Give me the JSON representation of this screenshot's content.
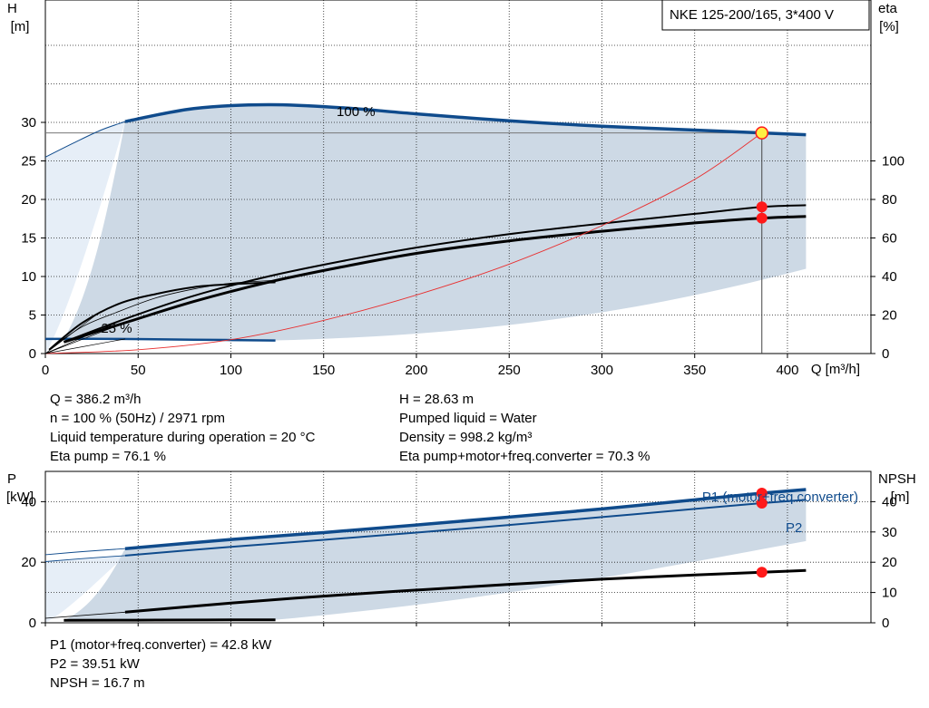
{
  "chart_data": [
    {
      "type": "line",
      "title": "NKE 125-200/165, 3*400 V",
      "xlabel": "Q [m³/h]",
      "ylabel_left": [
        "H",
        "[m]"
      ],
      "ylabel_right": [
        "eta",
        "[%]"
      ],
      "xlim": [
        0,
        445
      ],
      "ylim_left": [
        0,
        40
      ],
      "ylim_right": [
        0,
        160
      ],
      "xticks": [
        "0",
        "50",
        "100",
        "150",
        "200",
        "250",
        "300",
        "350",
        "400"
      ],
      "yticks_left": [
        "0",
        "5",
        "10",
        "15",
        "20",
        "25",
        "30"
      ],
      "yticks_right": [
        "0",
        "20",
        "40",
        "60",
        "80",
        "100"
      ],
      "grid": true,
      "curve_labels": {
        "max_speed": "100 %",
        "min_speed": "25 %"
      },
      "series": [
        {
          "role": "head_100",
          "x": [
            43,
            80,
            120,
            160,
            200,
            250,
            300,
            350,
            386.2,
            410
          ],
          "y": [
            30.1,
            31.8,
            32.3,
            31.9,
            31.1,
            30.2,
            29.5,
            29.0,
            28.63,
            28.4
          ]
        },
        {
          "role": "head_extension_low_flow",
          "x": [
            0,
            15,
            30,
            43
          ],
          "y": [
            25.5,
            27.3,
            29.0,
            30.1
          ]
        },
        {
          "role": "head_25",
          "x": [
            0,
            40,
            80,
            124
          ],
          "y": [
            1.9,
            1.9,
            1.8,
            1.7
          ]
        },
        {
          "role": "eta_pump",
          "x": [
            10,
            43,
            80,
            120,
            160,
            200,
            250,
            300,
            350,
            386.2,
            410
          ],
          "y": [
            6,
            18,
            30,
            40,
            48,
            55,
            62,
            67.5,
            72.5,
            76.1,
            77
          ]
        },
        {
          "role": "eta_total",
          "x": [
            10,
            43,
            80,
            120,
            160,
            200,
            250,
            300,
            350,
            386.2,
            410
          ],
          "y": [
            6,
            16,
            27,
            37,
            45,
            52,
            58.5,
            63.5,
            67.8,
            70.3,
            71.2
          ]
        },
        {
          "role": "eta_pump_25",
          "x": [
            2,
            20,
            40,
            60,
            80,
            100,
            124
          ],
          "y": [
            2,
            16,
            26,
            31,
            34.5,
            36,
            37
          ]
        },
        {
          "role": "eta_total_25",
          "x": [
            2,
            20,
            40,
            60,
            80,
            100,
            124
          ],
          "y": [
            2,
            14,
            22,
            29,
            33.5,
            36.5,
            38
          ]
        },
        {
          "role": "system_curve",
          "x": [
            0,
            50,
            100,
            150,
            200,
            250,
            300,
            350,
            386.2
          ],
          "y": [
            0,
            0.5,
            1.8,
            4.3,
            7.6,
            11.6,
            16.6,
            22.6,
            28.63
          ]
        }
      ],
      "operating_point": {
        "Q": 386.2,
        "H": 28.63,
        "eta_pump": 76.1,
        "eta_total": 70.3
      }
    },
    {
      "type": "line",
      "ylabel_left": [
        "P",
        "[kW]"
      ],
      "ylabel_right": [
        "NPSH",
        "[m]"
      ],
      "ylim_left": [
        0,
        50
      ],
      "ylim_right": [
        0,
        50
      ],
      "yticks_left": [
        "0",
        "20",
        "40"
      ],
      "yticks_right": [
        "0",
        "10",
        "20",
        "30",
        "40"
      ],
      "grid": true,
      "series": [
        {
          "name": "P1 (motor+freq.converter)",
          "x": [
            43,
            100,
            150,
            200,
            250,
            300,
            350,
            386.2,
            410
          ],
          "y": [
            24.5,
            27.5,
            29.8,
            32.3,
            34.9,
            37.6,
            40.6,
            42.8,
            44.0
          ]
        },
        {
          "name": "P2",
          "x": [
            43,
            100,
            150,
            200,
            250,
            300,
            350,
            386.2,
            410
          ],
          "y": [
            22.2,
            25.1,
            27.4,
            29.8,
            32.3,
            34.9,
            37.6,
            39.51,
            40.6
          ]
        },
        {
          "role": "p1_ext",
          "x": [
            0,
            20,
            43
          ],
          "y": [
            22.5,
            23.5,
            24.5
          ]
        },
        {
          "role": "p2_ext",
          "x": [
            0,
            20,
            43
          ],
          "y": [
            20.2,
            21.2,
            22.2
          ]
        },
        {
          "role": "npsh",
          "x": [
            43,
            100,
            150,
            200,
            250,
            300,
            350,
            386.2,
            410
          ],
          "y": [
            3.5,
            6.5,
            8.8,
            10.8,
            12.7,
            14.4,
            15.8,
            16.7,
            17.3
          ]
        },
        {
          "role": "p_25",
          "x": [
            10,
            60,
            124
          ],
          "y": [
            0.8,
            0.9,
            1.0
          ]
        }
      ],
      "operating_points": [
        42.8,
        39.51,
        16.7
      ]
    }
  ],
  "readout_left": [
    "Q = 386.2 m³/h",
    "n = 100 % (50Hz) / 2971 rpm",
    "Liquid temperature during operation = 20 °C",
    "Eta pump = 76.1 %"
  ],
  "readout_right": [
    "H = 28.63 m",
    "Pumped liquid = Water",
    "Density = 998.2 kg/m³",
    "Eta pump+motor+freq.converter = 70.3 %"
  ],
  "readout_bottom": [
    "P1 (motor+freq.converter) = 42.8 kW",
    "P2 = 39.51 kW",
    "NPSH = 16.7 m"
  ],
  "colors": {
    "area": "#cdd9e5",
    "area_light": "#e6eef7",
    "head": "#0f4b8c",
    "system": "#e83030",
    "marker": "#ff1a1a",
    "highlight": "#ffee44",
    "grid": "#000000"
  }
}
